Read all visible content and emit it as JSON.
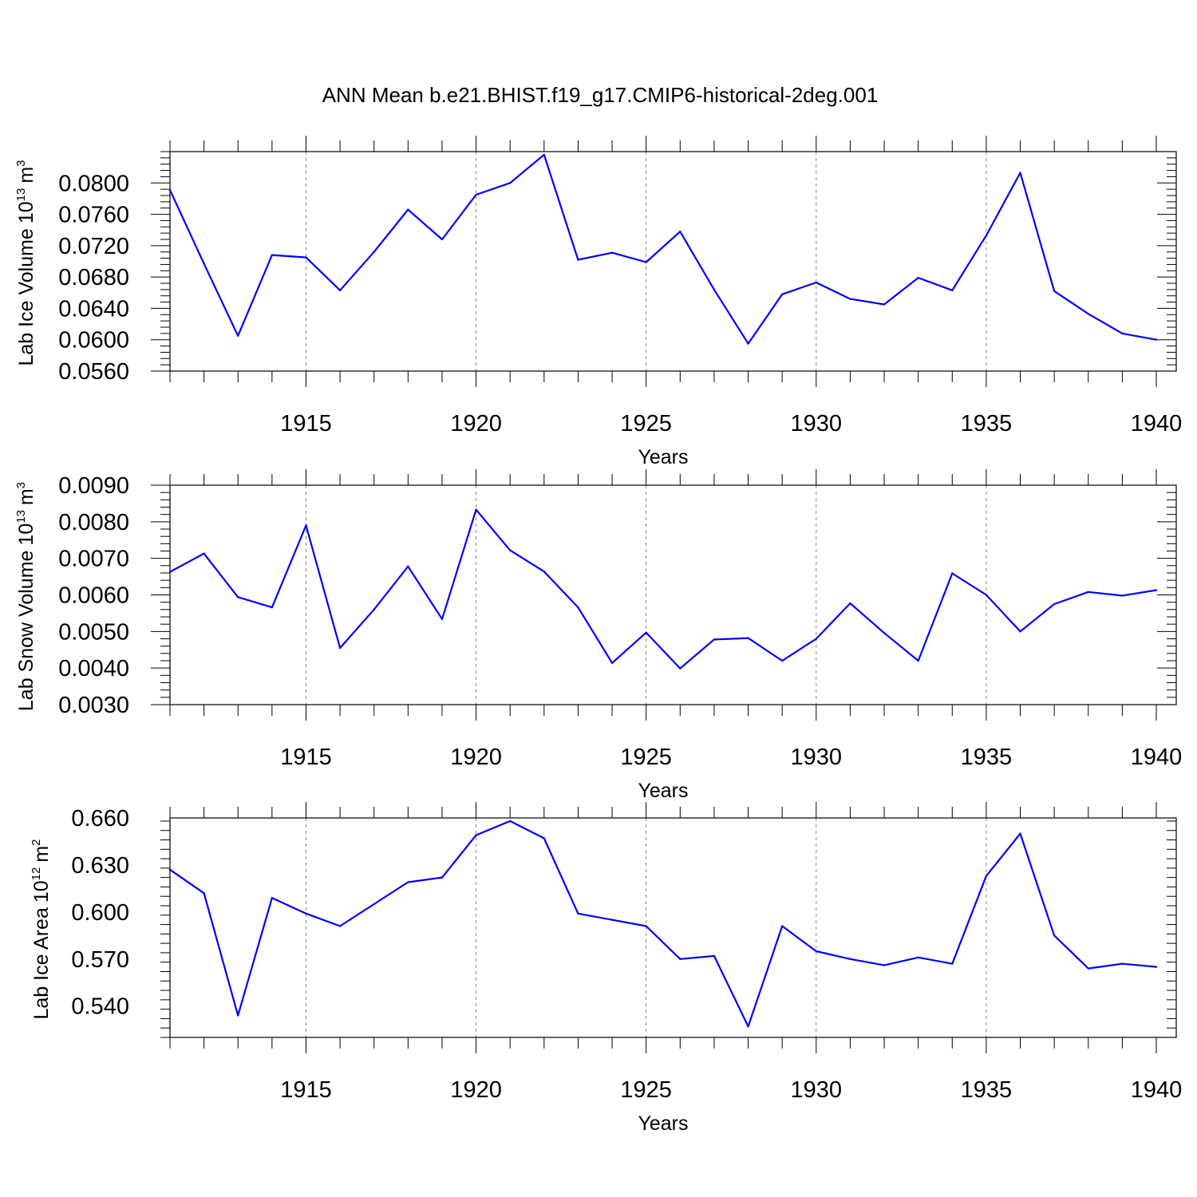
{
  "figure": {
    "title": "ANN Mean b.e21.BHIST.f19_g17.CMIP6-historical-2deg.001",
    "line_color": "#0000ff"
  },
  "chart_data": [
    {
      "type": "line",
      "ylabel": "Lab Ice Volume",
      "ylabel_unit_base": "10",
      "ylabel_unit_exp": "13",
      "ylabel_unit_suffix": "m",
      "ylabel_unit_suffix_exp": "3",
      "xlabel": "Years",
      "xlim": [
        1911,
        1940
      ],
      "ylim": [
        0.056,
        0.084
      ],
      "yticks": [
        0.056,
        0.06,
        0.064,
        0.068,
        0.072,
        0.076,
        0.08
      ],
      "ytick_labels": [
        "0.0560",
        "0.0600",
        "0.0640",
        "0.0680",
        "0.0720",
        "0.0760",
        "0.0800"
      ],
      "xticks": [
        1915,
        1920,
        1925,
        1930,
        1935,
        1940
      ],
      "xtick_labels": [
        "1915",
        "1920",
        "1925",
        "1930",
        "1935",
        "1940"
      ],
      "grid_x": [
        1915,
        1920,
        1925,
        1930,
        1935
      ],
      "series": [
        {
          "x": [
            1911,
            1912,
            1913,
            1914,
            1915,
            1916,
            1917,
            1918,
            1919,
            1920,
            1921,
            1922,
            1923,
            1924,
            1925,
            1926,
            1927,
            1928,
            1929,
            1930,
            1931,
            1932,
            1933,
            1934,
            1935,
            1936,
            1937,
            1938,
            1939,
            1940
          ],
          "values": [
            0.0791,
            0.0697,
            0.0605,
            0.0708,
            0.0705,
            0.0663,
            0.0712,
            0.0766,
            0.0728,
            0.0785,
            0.08,
            0.0836,
            0.0702,
            0.0711,
            0.0699,
            0.0738,
            0.0664,
            0.0595,
            0.0658,
            0.0673,
            0.0652,
            0.0645,
            0.0679,
            0.0663,
            0.0733,
            0.0813,
            0.0662,
            0.0633,
            0.0608,
            0.06
          ]
        }
      ]
    },
    {
      "type": "line",
      "ylabel": "Lab Snow Volume",
      "ylabel_unit_base": "10",
      "ylabel_unit_exp": "13",
      "ylabel_unit_suffix": "m",
      "ylabel_unit_suffix_exp": "3",
      "xlabel": "Years",
      "xlim": [
        1911,
        1940
      ],
      "ylim": [
        0.003,
        0.009
      ],
      "yticks": [
        0.003,
        0.004,
        0.005,
        0.006,
        0.007,
        0.008,
        0.009
      ],
      "ytick_labels": [
        "0.0030",
        "0.0040",
        "0.0050",
        "0.0060",
        "0.0070",
        "0.0080",
        "0.0090"
      ],
      "xticks": [
        1915,
        1920,
        1925,
        1930,
        1935,
        1940
      ],
      "xtick_labels": [
        "1915",
        "1920",
        "1925",
        "1930",
        "1935",
        "1940"
      ],
      "grid_x": [
        1915,
        1920,
        1925,
        1930,
        1935
      ],
      "series": [
        {
          "x": [
            1911,
            1912,
            1913,
            1914,
            1915,
            1916,
            1917,
            1918,
            1919,
            1920,
            1921,
            1922,
            1923,
            1924,
            1925,
            1926,
            1927,
            1928,
            1929,
            1930,
            1931,
            1932,
            1933,
            1934,
            1935,
            1936,
            1937,
            1938,
            1939,
            1940
          ],
          "values": [
            0.00663,
            0.00713,
            0.00594,
            0.00566,
            0.0079,
            0.00455,
            0.0056,
            0.00678,
            0.00534,
            0.00833,
            0.00722,
            0.00664,
            0.00566,
            0.00414,
            0.00497,
            0.00399,
            0.00478,
            0.00482,
            0.0042,
            0.0048,
            0.00577,
            0.00496,
            0.0042,
            0.00659,
            0.006,
            0.005,
            0.00575,
            0.00608,
            0.00598,
            0.00613
          ]
        }
      ]
    },
    {
      "type": "line",
      "ylabel": "Lab Ice Area",
      "ylabel_unit_base": "10",
      "ylabel_unit_exp": "12",
      "ylabel_unit_suffix": "m",
      "ylabel_unit_suffix_exp": "2",
      "xlabel": "Years",
      "xlim": [
        1911,
        1940
      ],
      "ylim": [
        0.52,
        0.66
      ],
      "yticks": [
        0.54,
        0.57,
        0.6,
        0.63,
        0.66
      ],
      "ytick_labels": [
        "0.540",
        "0.570",
        "0.600",
        "0.630",
        "0.660"
      ],
      "xticks": [
        1915,
        1920,
        1925,
        1930,
        1935,
        1940
      ],
      "xtick_labels": [
        "1915",
        "1920",
        "1925",
        "1930",
        "1935",
        "1940"
      ],
      "grid_x": [
        1915,
        1920,
        1925,
        1930,
        1935
      ],
      "series": [
        {
          "x": [
            1911,
            1912,
            1913,
            1914,
            1915,
            1916,
            1917,
            1918,
            1919,
            1920,
            1921,
            1922,
            1923,
            1924,
            1925,
            1926,
            1927,
            1928,
            1929,
            1930,
            1931,
            1932,
            1933,
            1934,
            1935,
            1936,
            1937,
            1938,
            1939,
            1940
          ],
          "values": [
            0.627,
            0.612,
            0.534,
            0.609,
            0.599,
            0.591,
            0.605,
            0.619,
            0.622,
            0.649,
            0.658,
            0.647,
            0.599,
            0.595,
            0.591,
            0.57,
            0.572,
            0.527,
            0.591,
            0.575,
            0.57,
            0.566,
            0.571,
            0.567,
            0.623,
            0.65,
            0.585,
            0.564,
            0.567,
            0.565
          ]
        }
      ]
    }
  ]
}
